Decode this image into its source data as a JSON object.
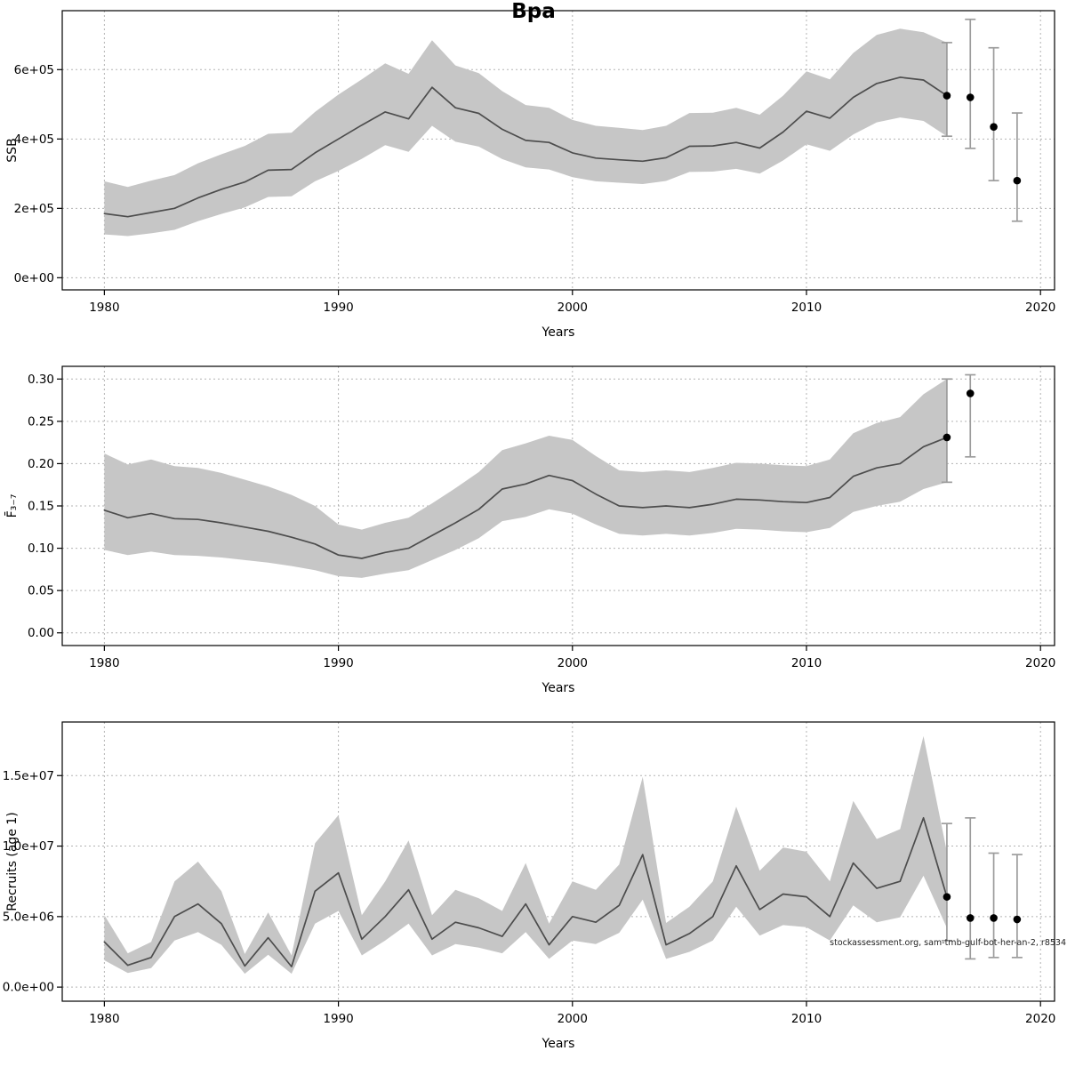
{
  "watermark": "stockassessment.org, sam-tmb-gulf-bot-her-an-2, r8534",
  "colors": {
    "band": "#c6c6c6",
    "line": "#4d4d4d",
    "grid": "#b3b3b3",
    "errorbar": "#9c9c9c",
    "dot": "#000000",
    "frame": "#000000"
  },
  "chart_data": [
    {
      "type": "area",
      "title": "Bpa",
      "xlabel": "Years",
      "ylabel": "SSB",
      "xlim": [
        1978.2,
        2020.6
      ],
      "ylim": [
        -35000,
        770000
      ],
      "xticks": [
        1980,
        1990,
        2000,
        2010,
        2020
      ],
      "yticks": [
        {
          "v": 0,
          "label": "0e+00"
        },
        {
          "v": 200000,
          "label": "2e+05"
        },
        {
          "v": 400000,
          "label": "4e+05"
        },
        {
          "v": 600000,
          "label": "6e+05"
        }
      ],
      "years": [
        1980,
        1981,
        1982,
        1983,
        1984,
        1985,
        1986,
        1987,
        1988,
        1989,
        1990,
        1991,
        1992,
        1993,
        1994,
        1995,
        1996,
        1997,
        1998,
        1999,
        2000,
        2001,
        2002,
        2003,
        2004,
        2005,
        2006,
        2007,
        2008,
        2009,
        2010,
        2011,
        2012,
        2013,
        2014,
        2015,
        2016
      ],
      "line": [
        185000,
        176000,
        188000,
        200000,
        230000,
        255000,
        276000,
        310000,
        312000,
        360000,
        400000,
        440000,
        478000,
        458000,
        549000,
        490000,
        474000,
        428000,
        396000,
        390000,
        360000,
        345000,
        340000,
        336000,
        346000,
        379000,
        380000,
        390000,
        374000,
        420000,
        480000,
        460000,
        520000,
        560000,
        578000,
        570000,
        525000
      ],
      "band_lower": [
        125000,
        120000,
        128000,
        138000,
        163000,
        184000,
        203000,
        233000,
        235000,
        278000,
        308000,
        343000,
        382000,
        363000,
        438000,
        392000,
        378000,
        342000,
        318000,
        312000,
        290000,
        278000,
        274000,
        270000,
        279000,
        305000,
        306000,
        314000,
        300000,
        338000,
        385000,
        366000,
        413000,
        448000,
        462000,
        452000,
        408000
      ],
      "band_upper": [
        278000,
        262000,
        280000,
        296000,
        330000,
        356000,
        380000,
        415000,
        418000,
        478000,
        528000,
        572000,
        618000,
        588000,
        685000,
        612000,
        590000,
        538000,
        498000,
        490000,
        455000,
        438000,
        432000,
        426000,
        438000,
        475000,
        476000,
        490000,
        470000,
        525000,
        595000,
        572000,
        648000,
        700000,
        718000,
        708000,
        678000
      ],
      "forecast": {
        "years": [
          2016,
          2017,
          2018,
          2019
        ],
        "points": [
          525000,
          520000,
          435000,
          280000
        ],
        "lower": [
          408000,
          373000,
          280000,
          163000
        ],
        "upper": [
          678000,
          745000,
          663000,
          475000
        ]
      }
    },
    {
      "type": "area",
      "title": "",
      "xlabel": "Years",
      "ylabel": "F̄₃₋₇",
      "xlim": [
        1978.2,
        2020.6
      ],
      "ylim": [
        -0.015,
        0.315
      ],
      "xticks": [
        1980,
        1990,
        2000,
        2010,
        2020
      ],
      "yticks": [
        {
          "v": 0,
          "label": "0.00"
        },
        {
          "v": 0.05,
          "label": "0.05"
        },
        {
          "v": 0.1,
          "label": "0.10"
        },
        {
          "v": 0.15,
          "label": "0.15"
        },
        {
          "v": 0.2,
          "label": "0.20"
        },
        {
          "v": 0.25,
          "label": "0.25"
        },
        {
          "v": 0.3,
          "label": "0.30"
        }
      ],
      "years": [
        1980,
        1981,
        1982,
        1983,
        1984,
        1985,
        1986,
        1987,
        1988,
        1989,
        1990,
        1991,
        1992,
        1993,
        1994,
        1995,
        1996,
        1997,
        1998,
        1999,
        2000,
        2001,
        2002,
        2003,
        2004,
        2005,
        2006,
        2007,
        2008,
        2009,
        2010,
        2011,
        2012,
        2013,
        2014,
        2015,
        2016
      ],
      "line": [
        0.145,
        0.136,
        0.141,
        0.135,
        0.134,
        0.13,
        0.125,
        0.12,
        0.113,
        0.105,
        0.092,
        0.088,
        0.095,
        0.1,
        0.115,
        0.13,
        0.146,
        0.17,
        0.176,
        0.186,
        0.18,
        0.164,
        0.15,
        0.148,
        0.15,
        0.148,
        0.152,
        0.158,
        0.157,
        0.155,
        0.154,
        0.16,
        0.185,
        0.195,
        0.2,
        0.22,
        0.231
      ],
      "band_lower": [
        0.098,
        0.092,
        0.096,
        0.092,
        0.091,
        0.089,
        0.086,
        0.083,
        0.079,
        0.074,
        0.067,
        0.065,
        0.07,
        0.074,
        0.086,
        0.098,
        0.112,
        0.132,
        0.137,
        0.146,
        0.141,
        0.128,
        0.117,
        0.115,
        0.117,
        0.115,
        0.118,
        0.123,
        0.122,
        0.12,
        0.119,
        0.124,
        0.143,
        0.15,
        0.155,
        0.17,
        0.178
      ],
      "band_upper": [
        0.212,
        0.199,
        0.205,
        0.197,
        0.195,
        0.189,
        0.181,
        0.173,
        0.163,
        0.15,
        0.128,
        0.122,
        0.13,
        0.136,
        0.153,
        0.171,
        0.19,
        0.216,
        0.224,
        0.233,
        0.228,
        0.209,
        0.192,
        0.19,
        0.192,
        0.19,
        0.195,
        0.201,
        0.2,
        0.198,
        0.197,
        0.205,
        0.236,
        0.248,
        0.255,
        0.282,
        0.3
      ],
      "forecast": {
        "years": [
          2016,
          2017
        ],
        "points": [
          0.231,
          0.283
        ],
        "lower": [
          0.178,
          0.208
        ],
        "upper": [
          0.3,
          0.305
        ]
      }
    },
    {
      "type": "area",
      "title": "",
      "xlabel": "Years",
      "ylabel": "Recruits (age 1)",
      "xlim": [
        1978.2,
        2020.6
      ],
      "ylim": [
        -1000000,
        18800000
      ],
      "xticks": [
        1980,
        1990,
        2000,
        2010,
        2020
      ],
      "yticks": [
        {
          "v": 0,
          "label": "0.0e+00"
        },
        {
          "v": 5000000,
          "label": "5.0e+06"
        },
        {
          "v": 10000000,
          "label": "1.0e+07"
        },
        {
          "v": 15000000,
          "label": "1.5e+07"
        }
      ],
      "years": [
        1980,
        1981,
        1982,
        1983,
        1984,
        1985,
        1986,
        1987,
        1988,
        1989,
        1990,
        1991,
        1992,
        1993,
        1994,
        1995,
        1996,
        1997,
        1998,
        1999,
        2000,
        2001,
        2002,
        2003,
        2004,
        2005,
        2006,
        2007,
        2008,
        2009,
        2010,
        2011,
        2012,
        2013,
        2014,
        2015,
        2016
      ],
      "line": [
        3200000,
        1550000,
        2100000,
        5000000,
        5900000,
        4500000,
        1500000,
        3500000,
        1450000,
        6800000,
        8100000,
        3400000,
        5000000,
        6900000,
        3400000,
        4600000,
        4200000,
        3600000,
        5900000,
        3000000,
        5000000,
        4600000,
        5800000,
        9400000,
        3000000,
        3800000,
        5000000,
        8600000,
        5500000,
        6600000,
        6400000,
        5000000,
        8800000,
        7000000,
        7500000,
        12000000,
        6400000
      ],
      "band_lower": [
        1900000,
        1000000,
        1350000,
        3300000,
        3900000,
        3000000,
        950000,
        2300000,
        950000,
        4500000,
        5400000,
        2250000,
        3300000,
        4500000,
        2250000,
        3050000,
        2800000,
        2400000,
        3900000,
        2000000,
        3300000,
        3050000,
        3850000,
        6200000,
        2000000,
        2500000,
        3300000,
        5700000,
        3650000,
        4400000,
        4250000,
        3300000,
        5800000,
        4600000,
        4950000,
        7900000,
        4200000
      ],
      "band_upper": [
        5100000,
        2400000,
        3200000,
        7500000,
        8900000,
        6800000,
        2350000,
        5300000,
        2250000,
        10200000,
        12200000,
        5100000,
        7500000,
        10400000,
        5100000,
        6900000,
        6300000,
        5400000,
        8800000,
        4500000,
        7500000,
        6900000,
        8700000,
        14900000,
        4550000,
        5700000,
        7500000,
        12800000,
        8250000,
        9900000,
        9600000,
        7500000,
        13200000,
        10500000,
        11200000,
        17800000,
        9600000
      ],
      "forecast": {
        "years": [
          2016,
          2017,
          2018,
          2019
        ],
        "points": [
          6400000,
          4900000,
          4900000,
          4800000
        ],
        "lower": [
          3300000,
          2000000,
          2100000,
          2100000
        ],
        "upper": [
          11600000,
          12000000,
          9500000,
          9400000
        ]
      }
    }
  ]
}
